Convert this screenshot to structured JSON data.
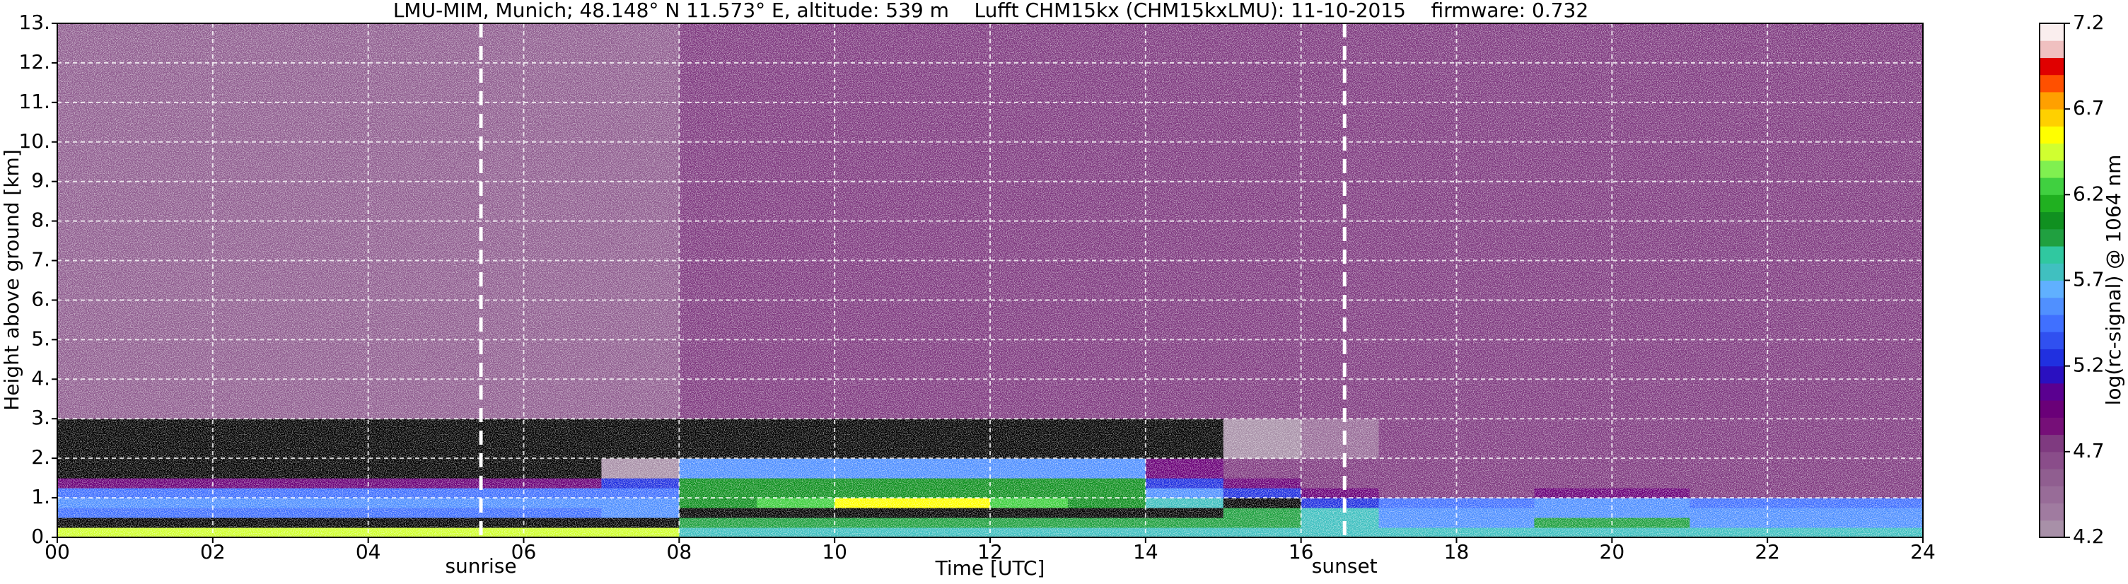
{
  "chart_data": {
    "type": "heatmap",
    "title": "LMU-MIM, Munich; 48.148° N 11.573° E, altitude: 539 m    Lufft CHM15kx (CHM15kxLMU): 11-10-2015    firmware: 0.732",
    "x_label": "Time [UTC]",
    "y_label": "Height above ground [km]",
    "xlim": [
      0,
      24
    ],
    "ylim": [
      0,
      13
    ],
    "xticks": [
      {
        "value": 0,
        "label": "00"
      },
      {
        "value": 2,
        "label": "02"
      },
      {
        "value": 4,
        "label": "04"
      },
      {
        "value": 6,
        "label": "06"
      },
      {
        "value": 8,
        "label": "08"
      },
      {
        "value": 10,
        "label": "10"
      },
      {
        "value": 12,
        "label": "12"
      },
      {
        "value": 14,
        "label": "14"
      },
      {
        "value": 16,
        "label": "16"
      },
      {
        "value": 18,
        "label": "18"
      },
      {
        "value": 20,
        "label": "20"
      },
      {
        "value": 22,
        "label": "22"
      },
      {
        "value": 24,
        "label": "24"
      }
    ],
    "yticks": [
      {
        "value": 0,
        "label": "0."
      },
      {
        "value": 1,
        "label": "1."
      },
      {
        "value": 2,
        "label": "2."
      },
      {
        "value": 3,
        "label": "3."
      },
      {
        "value": 4,
        "label": "4."
      },
      {
        "value": 5,
        "label": "5."
      },
      {
        "value": 6,
        "label": "6."
      },
      {
        "value": 7,
        "label": "7."
      },
      {
        "value": 8,
        "label": "8."
      },
      {
        "value": 9,
        "label": "9."
      },
      {
        "value": 10,
        "label": "10."
      },
      {
        "value": 11,
        "label": "11."
      },
      {
        "value": 12,
        "label": "12."
      },
      {
        "value": 13,
        "label": "13."
      }
    ],
    "grid": true,
    "x_bins": [
      0,
      1,
      2,
      3,
      4,
      5,
      6,
      7,
      8,
      9,
      10,
      11,
      12,
      13,
      14,
      15,
      16,
      17,
      18,
      19,
      20,
      21,
      22,
      23,
      24
    ],
    "y_bins": [
      0,
      0.25,
      0.5,
      0.75,
      1,
      1.25,
      1.5,
      2,
      3,
      13
    ],
    "z": [
      [
        6.4,
        4.0,
        5.5,
        5.6,
        5.4,
        5.0,
        4.0,
        4.0,
        4.6
      ],
      [
        6.4,
        4.0,
        5.5,
        5.6,
        5.4,
        5.0,
        4.0,
        4.0,
        4.6
      ],
      [
        6.4,
        4.0,
        5.5,
        5.6,
        5.4,
        5.0,
        4.0,
        4.0,
        4.6
      ],
      [
        6.4,
        4.0,
        5.5,
        5.6,
        5.4,
        5.0,
        4.0,
        4.0,
        4.6
      ],
      [
        6.4,
        4.0,
        5.5,
        5.6,
        5.4,
        5.0,
        4.0,
        4.0,
        4.6
      ],
      [
        6.4,
        4.0,
        5.5,
        5.6,
        5.4,
        5.0,
        4.0,
        4.0,
        4.6
      ],
      [
        6.4,
        4.0,
        5.5,
        5.6,
        5.4,
        5.0,
        4.0,
        4.0,
        4.6
      ],
      [
        6.4,
        4.0,
        5.6,
        5.6,
        5.5,
        5.3,
        4.2,
        4.0,
        4.6
      ],
      [
        5.7,
        5.9,
        4.0,
        6.1,
        6.0,
        6.0,
        5.6,
        4.0,
        4.7
      ],
      [
        5.7,
        5.9,
        4.0,
        6.3,
        6.0,
        6.1,
        5.6,
        4.0,
        4.7
      ],
      [
        5.7,
        5.9,
        4.0,
        6.5,
        6.1,
        6.1,
        5.6,
        4.0,
        4.7
      ],
      [
        5.7,
        5.9,
        4.0,
        6.5,
        6.1,
        6.1,
        5.6,
        4.0,
        4.7
      ],
      [
        5.7,
        5.9,
        4.0,
        6.3,
        6.0,
        6.0,
        5.6,
        4.0,
        4.7
      ],
      [
        5.7,
        5.9,
        4.0,
        6.1,
        6.0,
        6.0,
        5.6,
        4.0,
        4.7
      ],
      [
        5.8,
        5.9,
        4.0,
        5.8,
        5.6,
        5.3,
        4.9,
        4.0,
        4.7
      ],
      [
        5.8,
        5.9,
        5.9,
        4.0,
        5.3,
        5.0,
        4.8,
        4.2,
        4.7
      ],
      [
        5.8,
        5.8,
        5.8,
        5.3,
        4.9,
        4.8,
        4.7,
        4.5,
        4.7
      ],
      [
        5.7,
        5.6,
        5.6,
        5.5,
        4.7,
        4.7,
        4.7,
        4.7,
        4.7
      ],
      [
        5.7,
        5.6,
        5.6,
        5.5,
        4.7,
        4.7,
        4.7,
        4.7,
        4.7
      ],
      [
        5.7,
        5.9,
        5.6,
        5.6,
        5.0,
        4.7,
        4.7,
        4.7,
        4.7
      ],
      [
        5.7,
        5.9,
        5.6,
        5.6,
        5.0,
        4.7,
        4.7,
        4.7,
        4.7
      ],
      [
        5.7,
        5.6,
        5.6,
        5.5,
        4.7,
        4.7,
        4.7,
        4.7,
        4.7
      ],
      [
        5.7,
        5.6,
        5.6,
        5.5,
        4.7,
        4.7,
        4.7,
        4.7,
        4.7
      ],
      [
        5.7,
        5.6,
        5.6,
        5.5,
        4.7,
        4.7,
        4.7,
        4.7,
        4.7
      ]
    ],
    "markers": [
      {
        "label": "sunrise",
        "x": 5.45
      },
      {
        "label": "sunset",
        "x": 16.56
      }
    ],
    "colorbar": {
      "label": "log(rc-signal) @ 1064 nm",
      "lim": [
        4.2,
        7.2
      ],
      "ticks": [
        4.2,
        4.7,
        5.2,
        5.7,
        6.2,
        6.7,
        7.2
      ],
      "under_color": "#000000",
      "colors": [
        "#a890a8",
        "#a07ba0",
        "#986c98",
        "#905e90",
        "#8a4d8a",
        "#7f3a80",
        "#760f78",
        "#6a0078",
        "#5a0090",
        "#2a10c0",
        "#2030e0",
        "#3050f0",
        "#4070ff",
        "#5090ff",
        "#60b0ff",
        "#40c0c0",
        "#30c8a0",
        "#20a040",
        "#109020",
        "#20b020",
        "#40d040",
        "#80f050",
        "#d0ff30",
        "#ffff00",
        "#ffd000",
        "#ffa000",
        "#ff5000",
        "#e00000",
        "#f0c0c0",
        "#faeeee"
      ]
    }
  }
}
